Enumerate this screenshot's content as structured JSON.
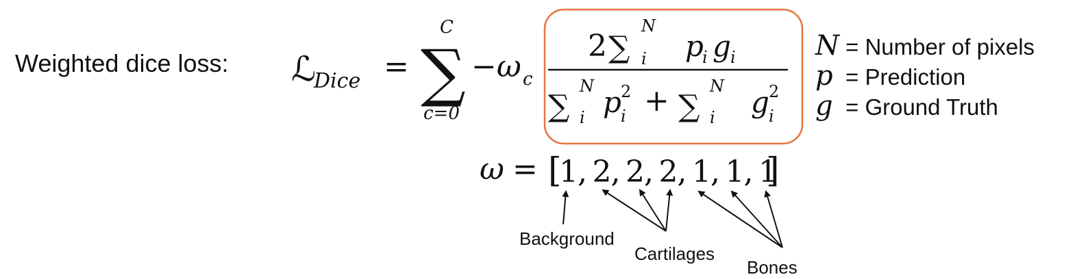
{
  "title": "Weighted dice loss:",
  "equation": {
    "loss_symbol": "ℒ",
    "loss_subscript": "Dice",
    "equals": "=",
    "sum_symbol": "∑",
    "sum_upper": "C",
    "sum_lower": "c=0",
    "weight_symbol": "−ω",
    "weight_subscript": "c",
    "numerator": {
      "coef": "2",
      "sum": "∑",
      "upper": "N",
      "lower": "i",
      "p": "p",
      "p_sub": "i",
      "g": "g",
      "g_sub": "i"
    },
    "denominator": {
      "sum1": "∑",
      "upper1": "N",
      "lower1": "i",
      "p": "p",
      "p_sup": "2",
      "p_sub": "i",
      "plus": "+",
      "sum2": "∑",
      "upper2": "N",
      "lower2": "i",
      "g": "g",
      "g_sup": "2",
      "g_sub": "i"
    },
    "highlight_color": "#e8733a"
  },
  "weights": {
    "symbol": "ω",
    "equals": "=",
    "open": "[",
    "close": "]",
    "values": [
      "1",
      "2",
      "2",
      "2",
      "1",
      "1",
      "1"
    ],
    "separator": ","
  },
  "legend": [
    {
      "symbol": "N",
      "description": "= Number of pixels"
    },
    {
      "symbol": "p",
      "description": "= Prediction"
    },
    {
      "symbol": "g",
      "description": "= Ground Truth"
    }
  ],
  "annotations": {
    "background": "Background",
    "cartilages": "Cartilages",
    "bones": "Bones"
  }
}
